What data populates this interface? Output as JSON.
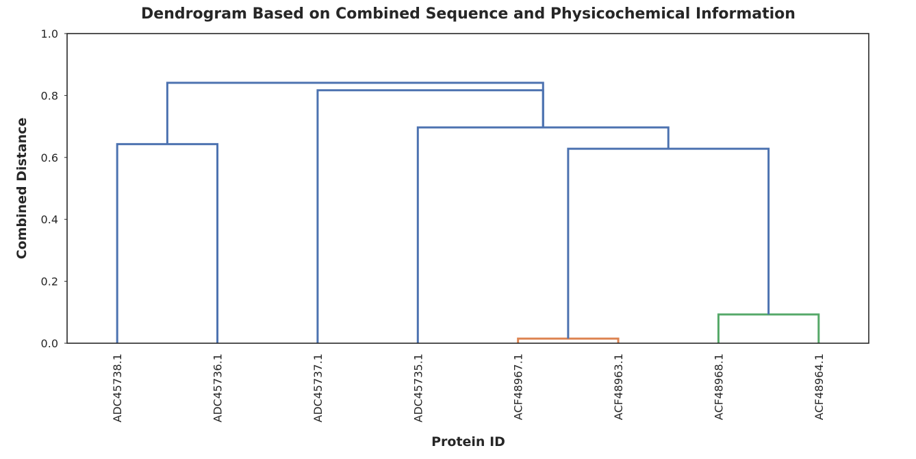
{
  "chart_data": {
    "type": "dendrogram",
    "title": "Dendrogram Based on Combined Sequence and Physicochemical Information",
    "xlabel": "Protein ID",
    "ylabel": "Combined Distance",
    "ylim": [
      0,
      1.0
    ],
    "yticks": [
      "0.0",
      "0.2",
      "0.4",
      "0.6",
      "0.8",
      "1.0"
    ],
    "leaves": [
      "ADC45738.1",
      "ADC45736.1",
      "ADC45737.1",
      "ADC45735.1",
      "ACF48967.1",
      "ACF48963.1",
      "ACF48968.1",
      "ACF48964.1"
    ],
    "colors": {
      "default": "#4c72b0",
      "cluster_1": "#dd8452",
      "cluster_2": "#55a868"
    },
    "merges": [
      {
        "left": "ACF48967.1",
        "right": "ACF48963.1",
        "height": 0.015,
        "color": "cluster_1"
      },
      {
        "left": "ACF48968.1",
        "right": "ACF48964.1",
        "height": 0.093,
        "color": "cluster_2"
      },
      {
        "left": "ACF48967.1 + ACF48963.1",
        "right": "ACF48968.1 + ACF48964.1",
        "height": 0.628,
        "color": "default"
      },
      {
        "left": "ADC45738.1",
        "right": "ADC45736.1",
        "height": 0.643,
        "color": "default"
      },
      {
        "left": "ADC45735.1",
        "right": "ACF48967.1 + ACF48963.1 + ACF48968.1 + ACF48964.1",
        "height": 0.697,
        "color": "default"
      },
      {
        "left": "ADC45737.1",
        "right": "ADC45735.1 + ACF cluster",
        "height": 0.817,
        "color": "default"
      },
      {
        "left": "ADC45738.1 + ADC45736.1",
        "right": "ADC45737.1 + ADC45735.1 + ACF cluster",
        "height": 0.841,
        "color": "default"
      }
    ]
  }
}
